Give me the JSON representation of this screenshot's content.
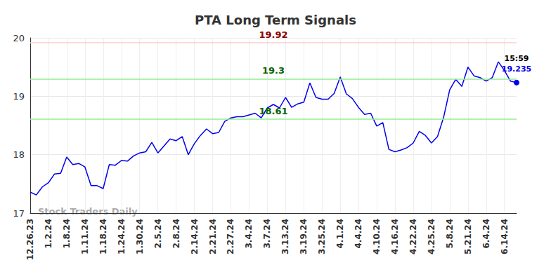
{
  "chart_data": {
    "type": "line",
    "title": "PTA Long Term Signals",
    "watermark": "Stock Traders Daily",
    "color": "#0000ee",
    "grid": true,
    "categories": [
      "12.26.23",
      null,
      null,
      "1.2.24",
      null,
      null,
      "1.8.24",
      null,
      null,
      "1.11.24",
      null,
      null,
      "1.18.24",
      null,
      null,
      "1.24.24",
      null,
      null,
      "1.30.24",
      null,
      null,
      "2.5.24",
      null,
      null,
      "2.8.24",
      null,
      null,
      "2.14.24",
      null,
      null,
      "2.21.24",
      null,
      null,
      "2.27.24",
      null,
      null,
      "3.4.24",
      null,
      null,
      "3.7.24",
      null,
      null,
      "3.13.24",
      null,
      null,
      "3.19.24",
      null,
      null,
      "3.25.24",
      null,
      null,
      "4.1.24",
      null,
      null,
      "4.4.24",
      null,
      null,
      "4.10.24",
      null,
      null,
      "4.16.24",
      null,
      null,
      "4.22.24",
      null,
      null,
      "4.25.24",
      null,
      null,
      "5.8.24",
      null,
      null,
      "5.21.24",
      null,
      null,
      "6.4.24",
      null,
      null,
      "6.14.24",
      null,
      null
    ],
    "values": [
      17.36,
      17.31,
      17.45,
      17.52,
      17.67,
      17.68,
      17.96,
      17.83,
      17.85,
      17.79,
      17.47,
      17.47,
      17.42,
      17.83,
      17.82,
      17.9,
      17.89,
      17.98,
      18.03,
      18.05,
      18.21,
      18.03,
      18.15,
      18.27,
      18.24,
      18.31,
      18.0,
      18.19,
      18.33,
      18.44,
      18.36,
      18.38,
      18.57,
      18.63,
      18.65,
      18.65,
      18.68,
      18.71,
      18.63,
      18.8,
      18.86,
      18.8,
      18.98,
      18.81,
      18.87,
      18.9,
      19.23,
      18.98,
      18.95,
      18.95,
      19.05,
      19.33,
      19.04,
      18.96,
      18.81,
      18.69,
      18.71,
      18.49,
      18.55,
      18.09,
      18.05,
      18.08,
      18.12,
      18.2,
      18.4,
      18.33,
      18.2,
      18.31,
      18.64,
      19.11,
      19.29,
      19.17,
      19.5,
      19.35,
      19.32,
      19.26,
      19.32,
      19.59,
      19.44,
      19.26,
      19.235
    ],
    "last_point_time": "15:59",
    "lines": [
      {
        "value": 19.92,
        "color": "#ffcccc"
      },
      {
        "value": 19.3,
        "color": "#90ee90"
      },
      {
        "value": 18.61,
        "color": "#90ee90"
      }
    ],
    "ylim": [
      17,
      20
    ],
    "yticks": [
      17,
      18,
      19,
      20
    ]
  }
}
